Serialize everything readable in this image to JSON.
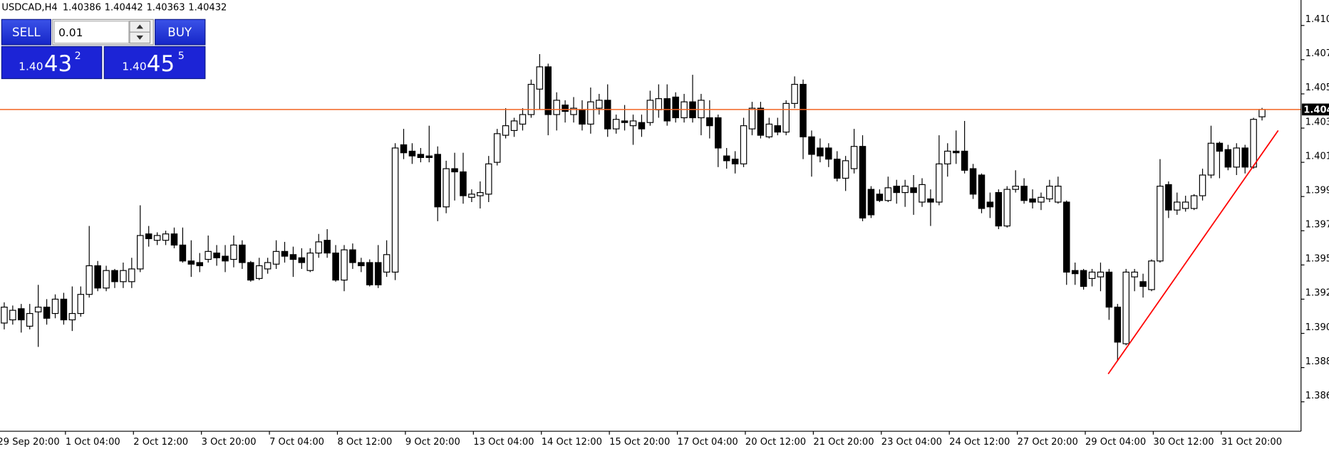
{
  "chart_data": {
    "type": "candlestick",
    "symbol": "USDCAD,H4",
    "categories": [
      "29 Sep 20:00",
      null,
      null,
      null,
      null,
      null,
      null,
      null,
      "1 Oct 04:00",
      null,
      null,
      null,
      null,
      null,
      null,
      null,
      "2 Oct 12:00",
      null,
      null,
      null,
      null,
      null,
      null,
      null,
      "3 Oct 20:00",
      null,
      null,
      null,
      null,
      null,
      null,
      null,
      "7 Oct 04:00",
      null,
      null,
      null,
      null,
      null,
      null,
      null,
      "8 Oct 12:00",
      null,
      null,
      null,
      null,
      null,
      null,
      null,
      "9 Oct 20:00",
      null,
      null,
      null,
      null,
      null,
      null,
      null,
      "13 Oct 04:00",
      null,
      null,
      null,
      null,
      null,
      null,
      null,
      "14 Oct 12:00",
      null,
      null,
      null,
      null,
      null,
      null,
      null,
      "15 Oct 20:00",
      null,
      null,
      null,
      null,
      null,
      null,
      null,
      "17 Oct 04:00",
      null,
      null,
      null,
      null,
      null,
      null,
      null,
      "20 Oct 12:00",
      null,
      null,
      null,
      null,
      null,
      null,
      null,
      "21 Oct 20:00",
      null,
      null,
      null,
      null,
      null,
      null,
      null,
      "23 Oct 04:00",
      null,
      null,
      null,
      null,
      null,
      null,
      null,
      "24 Oct 12:00",
      null,
      null,
      null,
      null,
      null,
      null,
      null,
      "27 Oct 20:00",
      null,
      null,
      null,
      null,
      null,
      null,
      null,
      "29 Oct 04:00",
      null,
      null,
      null,
      null,
      null,
      null,
      null,
      "30 Oct 12:00",
      null,
      null,
      null,
      null,
      null,
      null,
      null,
      "31 Oct 20:00",
      null,
      null,
      null,
      null
    ],
    "open": [
      1.3909,
      1.3911,
      1.3918,
      1.3907,
      1.3916,
      1.3919,
      1.3915,
      1.3924,
      1.3911,
      1.3915,
      1.3927,
      1.3945,
      1.3931,
      1.3942,
      1.3935,
      1.3935,
      1.3943,
      1.3965,
      1.3961,
      1.3961,
      1.3965,
      1.3958,
      1.3948,
      1.3947,
      1.3949,
      1.3953,
      1.3951,
      1.3949,
      1.3958,
      1.3947,
      1.3937,
      1.3943,
      1.3946,
      1.3954,
      1.3952,
      1.395,
      1.3942,
      1.3953,
      1.3961,
      1.3953,
      1.3936,
      1.3955,
      1.3947,
      1.3947,
      1.3947,
      1.3941,
      1.3941,
      1.4021,
      1.4017,
      1.4015,
      1.4014,
      1.4015,
      1.3982,
      1.4006,
      1.4004,
      1.3988,
      1.3989,
      1.399,
      1.401,
      1.4027,
      1.403,
      1.4034,
      1.404,
      1.4056,
      1.407,
      1.404,
      1.4046,
      1.404,
      1.4043,
      1.4034,
      1.4044,
      1.4049,
      1.4031,
      1.4036,
      1.4033,
      1.4035,
      1.4035,
      1.4043,
      1.405,
      1.4051,
      1.4038,
      1.4048,
      1.4038,
      1.4038,
      1.4038,
      1.4014,
      1.4012,
      1.4009,
      1.4031,
      1.4044,
      1.4026,
      1.4033,
      1.4029,
      1.4047,
      1.4059,
      1.4026,
      1.4019,
      1.4019,
      1.4012,
      1.4,
      1.4006,
      1.402,
      1.3993,
      1.399,
      1.3986,
      1.3995,
      1.3991,
      1.3994,
      1.3985,
      1.3987,
      1.3985,
      1.4009,
      1.4017,
      1.4017,
      1.4006,
      1.4002,
      1.3985,
      1.3991,
      1.397,
      1.3993,
      1.3995,
      1.3987,
      1.3985,
      1.3987,
      1.3985,
      1.3985,
      1.3942,
      1.3942,
      1.3937,
      1.3938,
      1.3941,
      1.3919,
      1.3896,
      1.3938,
      1.3935,
      1.393,
      1.3948,
      1.3996,
      1.398,
      1.3981,
      1.3981,
      1.3989,
      1.4002,
      1.4022,
      1.4018,
      1.4007,
      1.4019,
      1.4007,
      1.40386
    ],
    "high": [
      1.3922,
      1.392,
      1.3921,
      1.3921,
      1.3933,
      1.3924,
      1.3927,
      1.3928,
      1.3932,
      1.3932,
      1.397,
      1.3948,
      1.3945,
      1.3943,
      1.3947,
      1.395,
      1.3983,
      1.397,
      1.3966,
      1.3967,
      1.3969,
      1.3969,
      1.3961,
      1.3953,
      1.3964,
      1.3958,
      1.3958,
      1.3964,
      1.3961,
      1.3948,
      1.395,
      1.395,
      1.3961,
      1.396,
      1.3957,
      1.3956,
      1.3956,
      1.3965,
      1.3968,
      1.3958,
      1.3958,
      1.3959,
      1.395,
      1.3949,
      1.3958,
      1.3961,
      1.4022,
      1.4031,
      1.4022,
      1.4019,
      1.4033,
      1.402,
      1.4011,
      1.4016,
      1.4016,
      1.3993,
      1.3998,
      1.4014,
      1.4031,
      1.4044,
      1.4038,
      1.4044,
      1.4062,
      1.4078,
      1.4072,
      1.4054,
      1.4049,
      1.4051,
      1.4049,
      1.4057,
      1.4053,
      1.4059,
      1.404,
      1.4046,
      1.404,
      1.404,
      1.4055,
      1.4059,
      1.4059,
      1.4054,
      1.4053,
      1.4065,
      1.4053,
      1.4049,
      1.404,
      1.4019,
      1.4017,
      1.4038,
      1.4048,
      1.4048,
      1.4038,
      1.4038,
      1.4049,
      1.4064,
      1.4062,
      1.403,
      1.4025,
      1.4022,
      1.4017,
      1.4014,
      1.4031,
      1.4027,
      1.3995,
      1.3993,
      1.4001,
      1.3999,
      1.3999,
      1.4002,
      1.4,
      1.3993,
      1.4027,
      1.4022,
      1.403,
      1.4036,
      1.4009,
      1.4003,
      1.3991,
      1.3993,
      1.3995,
      1.4005,
      1.4,
      1.3993,
      1.3991,
      1.3999,
      1.4001,
      1.3986,
      1.3947,
      1.3943,
      1.3943,
      1.3947,
      1.3943,
      1.3921,
      1.3943,
      1.3943,
      1.394,
      1.3949,
      1.4012,
      1.3998,
      1.3991,
      1.3989,
      1.399,
      1.4006,
      1.4033,
      1.4023,
      1.4021,
      1.4022,
      1.4021,
      1.4038,
      1.40442
    ],
    "low": [
      1.3905,
      1.3908,
      1.3903,
      1.3905,
      1.3894,
      1.3908,
      1.3912,
      1.3908,
      1.3904,
      1.3913,
      1.3925,
      1.3929,
      1.3929,
      1.3931,
      1.3931,
      1.3931,
      1.3941,
      1.3957,
      1.3958,
      1.3958,
      1.3956,
      1.3947,
      1.3938,
      1.3941,
      1.3947,
      1.3945,
      1.3941,
      1.3944,
      1.3943,
      1.3935,
      1.3936,
      1.394,
      1.3943,
      1.3947,
      1.3938,
      1.3943,
      1.3941,
      1.395,
      1.395,
      1.3935,
      1.3929,
      1.3943,
      1.3941,
      1.3932,
      1.3931,
      1.3938,
      1.3936,
      1.4012,
      1.4009,
      1.401,
      1.401,
      1.3973,
      1.3978,
      1.3986,
      1.3984,
      1.3985,
      1.3981,
      1.3985,
      1.4008,
      1.4025,
      1.4026,
      1.403,
      1.4038,
      1.4043,
      1.4027,
      1.403,
      1.4035,
      1.4035,
      1.403,
      1.4028,
      1.404,
      1.4026,
      1.4028,
      1.403,
      1.4021,
      1.4026,
      1.4033,
      1.4038,
      1.4033,
      1.4035,
      1.4035,
      1.4035,
      1.4027,
      1.4025,
      1.4007,
      1.4006,
      1.4003,
      1.4007,
      1.4027,
      1.4025,
      1.4025,
      1.4027,
      1.4027,
      1.4044,
      1.4012,
      1.4001,
      1.401,
      1.4007,
      1.3998,
      1.3992,
      1.4003,
      1.3973,
      1.3975,
      1.3985,
      1.3985,
      1.3984,
      1.3982,
      1.3977,
      1.3982,
      1.397,
      1.3983,
      1.4001,
      1.4009,
      1.4003,
      1.3987,
      1.3978,
      1.3975,
      1.3968,
      1.3969,
      1.3991,
      1.3984,
      1.3981,
      1.398,
      1.3985,
      1.3984,
      1.3933,
      1.3933,
      1.393,
      1.3932,
      1.3929,
      1.3911,
      1.3885,
      1.3895,
      1.3929,
      1.3925,
      1.3929,
      1.3947,
      1.3975,
      1.3977,
      1.3979,
      1.398,
      1.3986,
      1.4,
      1.4,
      1.4005,
      1.4002,
      1.4003,
      1.4006,
      1.40363
    ],
    "close": [
      1.3919,
      1.3917,
      1.3911,
      1.3915,
      1.3919,
      1.3912,
      1.3924,
      1.3911,
      1.3915,
      1.3927,
      1.3945,
      1.3931,
      1.3942,
      1.3935,
      1.3942,
      1.3943,
      1.3964,
      1.3962,
      1.3964,
      1.3965,
      1.3958,
      1.3948,
      1.3946,
      1.3945,
      1.3954,
      1.395,
      1.3948,
      1.3958,
      1.3947,
      1.3936,
      1.3945,
      1.3947,
      1.3954,
      1.3951,
      1.3949,
      1.3947,
      1.3953,
      1.396,
      1.3953,
      1.3936,
      1.3955,
      1.3947,
      1.3945,
      1.3933,
      1.3933,
      1.3952,
      1.4019,
      1.4016,
      1.4014,
      1.4013,
      1.4013,
      1.3982,
      1.4006,
      1.4004,
      1.3989,
      1.399,
      1.3991,
      1.4009,
      1.4028,
      1.4033,
      1.4036,
      1.404,
      1.4059,
      1.407,
      1.404,
      1.4049,
      1.4042,
      1.4044,
      1.4034,
      1.4048,
      1.4049,
      1.4031,
      1.4037,
      1.4035,
      1.4036,
      1.4031,
      1.4049,
      1.405,
      1.4036,
      1.4038,
      1.4048,
      1.4038,
      1.4049,
      1.4033,
      1.4019,
      1.4011,
      1.4009,
      1.4033,
      1.4044,
      1.4027,
      1.4034,
      1.4029,
      1.4047,
      1.4059,
      1.4026,
      1.4015,
      1.4014,
      1.4012,
      1.4,
      1.4011,
      1.402,
      1.3975,
      1.3977,
      1.3986,
      1.3994,
      1.3991,
      1.3995,
      1.3991,
      1.3996,
      1.3985,
      1.4009,
      1.4017,
      1.4016,
      1.4005,
      1.399,
      1.3981,
      1.3982,
      1.397,
      1.3993,
      1.3995,
      1.3986,
      1.3985,
      1.3988,
      1.3995,
      1.3995,
      1.3941,
      1.394,
      1.3932,
      1.3941,
      1.3941,
      1.3919,
      1.3897,
      1.3941,
      1.3941,
      1.3932,
      1.3948,
      1.3995,
      1.398,
      1.3985,
      1.3985,
      1.3989,
      1.4002,
      1.4022,
      1.4017,
      1.4007,
      1.4019,
      1.4007,
      1.4037,
      1.40432
    ],
    "up_color": "#ffffff",
    "down_color": "#000000",
    "ylim": [
      1.3841,
      1.4112
    ],
    "yticks": [
      {
        "value": 1.38595,
        "label": "1.386"
      },
      {
        "value": 1.3881,
        "label": "1.388"
      },
      {
        "value": 1.39025,
        "label": "1.390"
      },
      {
        "value": 1.3924,
        "label": "1.392"
      },
      {
        "value": 1.39455,
        "label": "1.395"
      },
      {
        "value": 1.3967,
        "label": "1.397"
      },
      {
        "value": 1.39885,
        "label": "1.399"
      },
      {
        "value": 1.401,
        "label": "1.401"
      },
      {
        "value": 1.40315,
        "label": "1.403"
      },
      {
        "value": 1.4053,
        "label": "1.405"
      },
      {
        "value": 1.40745,
        "label": "1.407"
      },
      {
        "value": 1.4096,
        "label": "1.410"
      }
    ],
    "grid": false,
    "bid_line_color": "#f26522",
    "last_price_label": "1.404",
    "trendline": {
      "x": [
        129.9,
        149.9
      ],
      "y": [
        1.3877,
        1.403
      ],
      "color": "#ff0000"
    }
  },
  "trade_panel": {
    "sell_label": "SELL",
    "buy_label": "BUY",
    "lot": "0.01",
    "sell_price": {
      "prefix": "1.40",
      "big": "43",
      "small": "2"
    },
    "buy_price": {
      "prefix": "1.40",
      "big": "45",
      "small": "5"
    }
  }
}
